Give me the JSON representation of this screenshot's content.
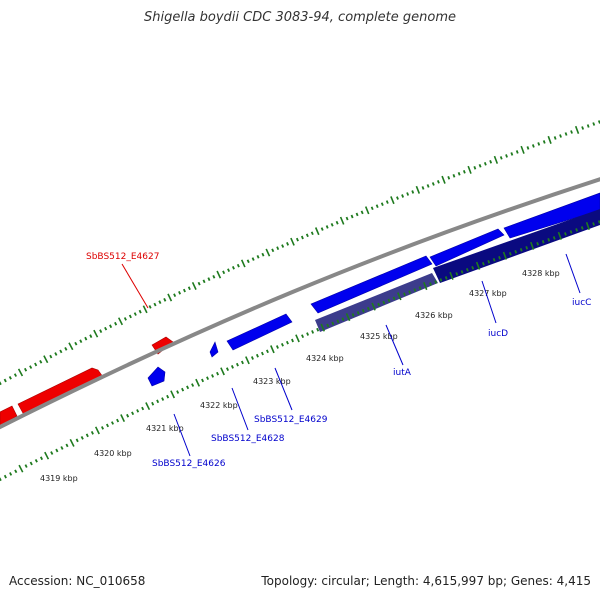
{
  "title": "Shigella boydii CDC 3083-94, complete genome",
  "footer": {
    "accession": "Accession: NC_010658",
    "topology": "Topology: circular; Length: 4,615,997 bp; Genes: 4,415"
  },
  "colors": {
    "forward_gene": "#0000ee",
    "reverse_gene": "#ee0000",
    "operon_dark": "#0a0a80",
    "operon_mid": "#3c3c8c",
    "backbone": "#888888",
    "tick": "#1e7a1e",
    "red_label": "#dd0000",
    "blue_label": "#0000cc"
  },
  "ticks": [
    {
      "label": "4319 kbp"
    },
    {
      "label": "4320 kbp"
    },
    {
      "label": "4321 kbp"
    },
    {
      "label": "4322 kbp"
    },
    {
      "label": "4323 kbp"
    },
    {
      "label": "4324 kbp"
    },
    {
      "label": "4325 kbp"
    },
    {
      "label": "4326 kbp"
    },
    {
      "label": "4327 kbp"
    },
    {
      "label": "4328 kbp"
    }
  ],
  "genes": {
    "sbbs512_e4627": "SbBS512_E4627",
    "sbbs512_e4626": "SbBS512_E4626",
    "sbbs512_e4628": "SbBS512_E4628",
    "sbbs512_e4629": "SbBS512_E4629",
    "iuta": "iutA",
    "iucd": "iucD",
    "iucc": "iucC"
  }
}
